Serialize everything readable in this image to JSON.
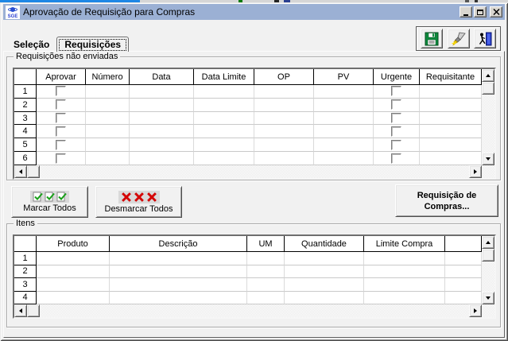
{
  "window": {
    "title": "Aprovação de Requisição para Compras",
    "app_icon_label": "SGE",
    "controls": [
      "minimize",
      "maximize",
      "close"
    ]
  },
  "toolbar": {
    "buttons": [
      {
        "name": "save",
        "icon": "floppy-disk-icon"
      },
      {
        "name": "clean",
        "icon": "paint-brush-icon"
      },
      {
        "name": "exit",
        "icon": "exit-door-icon"
      }
    ]
  },
  "tabs": [
    {
      "label": "Seleção",
      "active": false
    },
    {
      "label": "Requisições",
      "active": true
    }
  ],
  "requisitions_grid": {
    "group_label": "Requisições não enviadas",
    "columns": [
      "",
      "Aprovar",
      "Número",
      "Data",
      "Data Limite",
      "OP",
      "PV",
      "Urgente",
      "Requisitante"
    ],
    "checkbox_columns": [
      1,
      7
    ],
    "row_numbers": [
      "1",
      "2",
      "3",
      "4",
      "5",
      "6"
    ],
    "checkboxes_state": "unchecked",
    "cells_empty": true
  },
  "buttons": {
    "mark_all": "Marcar Todos",
    "unmark_all": "Desmarcar Todos",
    "purchase_requisition": "Requisição de Compras..."
  },
  "items_grid": {
    "group_label": "Itens",
    "columns": [
      "",
      "Produto",
      "Descrição",
      "UM",
      "Quantidade",
      "Limite Compra",
      ""
    ],
    "checkbox_columns": [],
    "row_numbers": [
      "1",
      "2",
      "3",
      "4"
    ],
    "cells_empty": true
  },
  "colors": {
    "titlebar": "#9bb0d4",
    "dialog_bg": "#f1f1f1",
    "grid_bg": "#ffffff",
    "check_green": "#18a018",
    "x_red": "#d40000",
    "desktop_blue": "#1e87e5",
    "save_green": "#0c8a3c",
    "door_blue": "#2238c8"
  }
}
